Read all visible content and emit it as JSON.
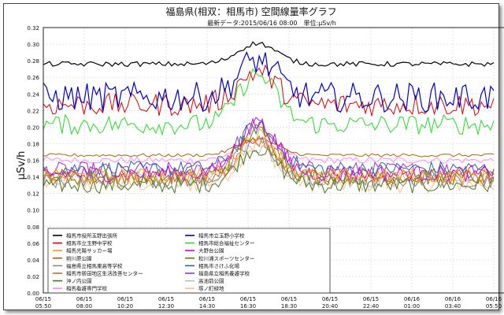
{
  "chart_data": {
    "type": "line",
    "title": "福島県(相双：相馬市) 空間線量率グラフ",
    "subtitle": "最新データ:2015/06/16 08:00　単位:μSv/h",
    "ylabel": "μSv/h",
    "xlabel": "",
    "ylim": [
      0,
      0.32
    ],
    "yticks": [
      "0.00",
      "0.02",
      "0.04",
      "0.06",
      "0.08",
      "0.10",
      "0.12",
      "0.14",
      "0.16",
      "0.18",
      "0.20",
      "0.22",
      "0.24",
      "0.26",
      "0.28",
      "0.30",
      "0.32"
    ],
    "grid": true,
    "legend_position": "bottom-left",
    "x_ticks": [
      {
        "date": "06/15",
        "time": "05:50"
      },
      {
        "date": "06/15",
        "time": "08:00"
      },
      {
        "date": "06/15",
        "time": "10:20"
      },
      {
        "date": "06/15",
        "time": "12:30"
      },
      {
        "date": "06/15",
        "time": "14:30"
      },
      {
        "date": "06/15",
        "time": "16:30"
      },
      {
        "date": "06/15",
        "time": "18:30"
      },
      {
        "date": "06/15",
        "time": "20:40"
      },
      {
        "date": "06/15",
        "time": "22:40"
      },
      {
        "date": "06/16",
        "time": "01:00"
      },
      {
        "date": "06/16",
        "time": "03:40"
      },
      {
        "date": "06/16",
        "time": "05:50"
      }
    ],
    "series": [
      {
        "name": "相馬市役所玉野出張所",
        "color": "#000000",
        "base": 0.276,
        "noise": 0.003,
        "peak": 0.025
      },
      {
        "name": "相馬市立玉野小学校",
        "color": "#0000cc",
        "base": 0.236,
        "noise": 0.018,
        "peak": 0.045
      },
      {
        "name": "相馬市立玉野中学校",
        "color": "#dd0000",
        "base": 0.227,
        "noise": 0.014,
        "peak": 0.04
      },
      {
        "name": "相馬市総合福祉センター",
        "color": "#22dd22",
        "base": 0.203,
        "noise": 0.012,
        "peak": 0.06
      },
      {
        "name": "相馬光陽サッカー場",
        "color": "#ff9900",
        "base": 0.141,
        "noise": 0.009,
        "peak": 0.05
      },
      {
        "name": "大野台公園",
        "color": "#dd00dd",
        "base": 0.144,
        "noise": 0.01,
        "peak": 0.06
      },
      {
        "name": "前川原公園",
        "color": "#aa6600",
        "base": 0.166,
        "noise": 0.002,
        "peak": 0.02
      },
      {
        "name": "松川浦スポーツセンター",
        "color": "#777700",
        "base": 0.14,
        "noise": 0.01,
        "peak": 0.055
      },
      {
        "name": "福島県立相馬東高等学校",
        "color": "#888888",
        "base": 0.137,
        "noise": 0.01,
        "peak": 0.045
      },
      {
        "name": "相馬市さけふ化場",
        "color": "#2266aa",
        "base": 0.15,
        "noise": 0.009,
        "peak": 0.05
      },
      {
        "name": "相馬市新田地区生活改善センター",
        "color": "#cc6633",
        "base": 0.14,
        "noise": 0.009,
        "peak": 0.045
      },
      {
        "name": "福島県立相馬養護学校",
        "color": "#9933cc",
        "base": 0.148,
        "noise": 0.01,
        "peak": 0.055
      },
      {
        "name": "沖ノ内公園",
        "color": "#447722",
        "base": 0.13,
        "noise": 0.01,
        "peak": 0.045
      },
      {
        "name": "高池前公園",
        "color": "#bbbbbb",
        "base": 0.137,
        "noise": 0.01,
        "peak": 0.04
      },
      {
        "name": "相馬看護専門学校",
        "color": "#ff88ff",
        "base": 0.16,
        "noise": 0.004,
        "peak": 0.025
      },
      {
        "name": "塚ノ町緑地",
        "color": "#ffbb88",
        "base": 0.132,
        "noise": 0.011,
        "peak": 0.045
      }
    ]
  }
}
